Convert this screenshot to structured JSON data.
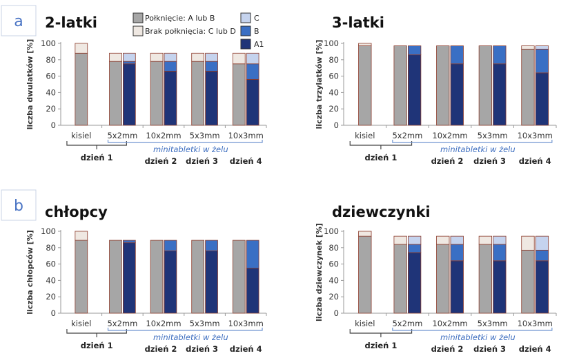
{
  "colors": {
    "swallowed": "#a6a6a6",
    "not_swallowed": "#efe8e2",
    "C": "#c5d3ee",
    "B": "#3a6fc4",
    "A1": "#1f3478",
    "bar_edge": "#8c3c2c",
    "axis": "#999999",
    "bracket_black": "#444444",
    "bracket_blue": "#6f94d0"
  },
  "legend": {
    "swallowed": "Połknięcie: A lub B",
    "not_swallowed": "Brak połknięcia: C lub D",
    "C": "C",
    "B": "B",
    "A1": "A1"
  },
  "annotations": {
    "minitablets": "minitabletki w żelu",
    "day1": "dzień 1",
    "day2": "dzień 2",
    "day3": "dzień 3",
    "day4": "dzień 4"
  },
  "panel_letters": [
    "a",
    "b"
  ],
  "chart_data": [
    {
      "type": "bar",
      "title": "2-latki",
      "ylabel": "liczba dwulatków [%]",
      "ylim": [
        0,
        100
      ],
      "yticks": [
        0,
        20,
        40,
        60,
        80,
        100
      ],
      "categories": [
        "kisiel",
        "5x2mm",
        "10x2mm",
        "5x3mm",
        "10x3mm"
      ],
      "stacked_left": [
        {
          "name": "Połknięcie: A lub B",
          "values": [
            88,
            78,
            78,
            78,
            75
          ]
        },
        {
          "name": "Brak połknięcia: C lub D",
          "values": [
            12,
            10,
            10,
            10,
            13
          ]
        }
      ],
      "stacked_right": [
        {
          "name": "A1",
          "values": [
            null,
            75,
            66,
            66,
            56
          ]
        },
        {
          "name": "B",
          "values": [
            null,
            3,
            12,
            12,
            19
          ]
        },
        {
          "name": "C",
          "values": [
            null,
            10,
            10,
            10,
            13
          ]
        }
      ]
    },
    {
      "type": "bar",
      "title": "3-latki",
      "ylabel": "liczba trzylatków [%]",
      "ylim": [
        0,
        100
      ],
      "yticks": [
        0,
        20,
        40,
        60,
        80,
        100
      ],
      "categories": [
        "kisiel",
        "5x2mm",
        "10x2mm",
        "5x3mm",
        "10x3mm"
      ],
      "stacked_left": [
        {
          "name": "Połknięcie: A lub B",
          "values": [
            97,
            97,
            97,
            97,
            93
          ]
        },
        {
          "name": "Brak połknięcia: C lub D",
          "values": [
            3,
            0,
            0,
            0,
            4
          ]
        }
      ],
      "stacked_right": [
        {
          "name": "A1",
          "values": [
            null,
            86,
            75,
            75,
            64
          ]
        },
        {
          "name": "B",
          "values": [
            null,
            11,
            22,
            22,
            29
          ]
        },
        {
          "name": "C",
          "values": [
            null,
            0,
            0,
            0,
            4
          ]
        }
      ]
    },
    {
      "type": "bar",
      "title": "chłopcy",
      "ylabel": "liczba chłopców [%]",
      "ylim": [
        0,
        100
      ],
      "yticks": [
        0,
        20,
        40,
        60,
        80,
        100
      ],
      "categories": [
        "kisiel",
        "5x2mm",
        "10x2mm",
        "5x3mm",
        "10x3mm"
      ],
      "stacked_left": [
        {
          "name": "Połknięcie: A lub B",
          "values": [
            89,
            89,
            89,
            89,
            89
          ]
        },
        {
          "name": "Brak połknięcia: C lub D",
          "values": [
            11,
            0,
            0,
            0,
            0
          ]
        }
      ],
      "stacked_right": [
        {
          "name": "A1",
          "values": [
            null,
            86,
            76,
            76,
            55
          ]
        },
        {
          "name": "B",
          "values": [
            null,
            3,
            13,
            13,
            34
          ]
        },
        {
          "name": "C",
          "values": [
            null,
            0,
            0,
            0,
            0
          ]
        }
      ]
    },
    {
      "type": "bar",
      "title": "dziewczynki",
      "ylabel": "liczba dziewczynek [%]",
      "ylim": [
        0,
        100
      ],
      "yticks": [
        0,
        20,
        40,
        60,
        80,
        100
      ],
      "categories": [
        "kisiel",
        "5x2mm",
        "10x2mm",
        "5x3mm",
        "10x3mm"
      ],
      "stacked_left": [
        {
          "name": "Połknięcie: A lub B",
          "values": [
            94,
            84,
            84,
            84,
            77
          ]
        },
        {
          "name": "Brak połknięcia: C lub D",
          "values": [
            6,
            10,
            10,
            10,
            17
          ]
        }
      ],
      "stacked_right": [
        {
          "name": "A1",
          "values": [
            null,
            74,
            64,
            64,
            64
          ]
        },
        {
          "name": "B",
          "values": [
            null,
            10,
            20,
            20,
            13
          ]
        },
        {
          "name": "C",
          "values": [
            null,
            10,
            10,
            10,
            17
          ]
        }
      ]
    }
  ]
}
